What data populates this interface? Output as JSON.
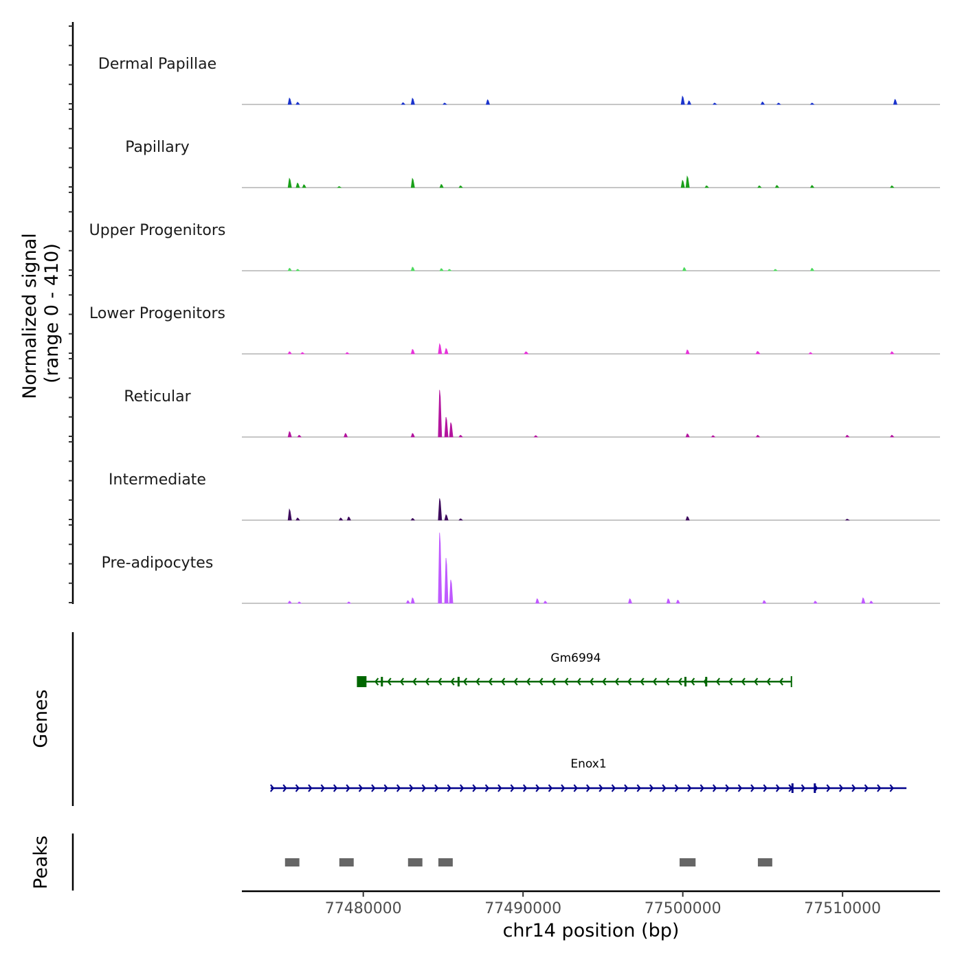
{
  "chart_data": {
    "type": "area",
    "title": "",
    "coverage": {
      "ylabel_line1": "Normalized signal",
      "ylabel_line2": "(range 0 - 410)",
      "ylim": [
        0,
        410
      ],
      "tracks": [
        {
          "name": "Dermal Papillae",
          "color": "#1a33cc",
          "peaks": [
            {
              "pos": 77475400,
              "h": 35,
              "w": 100
            },
            {
              "pos": 77475900,
              "h": 12,
              "w": 150
            },
            {
              "pos": 77483100,
              "h": 34,
              "w": 120
            },
            {
              "pos": 77482500,
              "h": 10,
              "w": 150
            },
            {
              "pos": 77487800,
              "h": 26,
              "w": 150
            },
            {
              "pos": 77485100,
              "h": 8,
              "w": 150
            },
            {
              "pos": 77500000,
              "h": 45,
              "w": 100
            },
            {
              "pos": 77500400,
              "h": 20,
              "w": 100
            },
            {
              "pos": 77502000,
              "h": 8,
              "w": 150
            },
            {
              "pos": 77505000,
              "h": 14,
              "w": 200
            },
            {
              "pos": 77506000,
              "h": 8,
              "w": 150
            },
            {
              "pos": 77508100,
              "h": 8,
              "w": 150
            },
            {
              "pos": 77513300,
              "h": 28,
              "w": 80
            }
          ]
        },
        {
          "name": "Papillary",
          "color": "#1aa01a",
          "peaks": [
            {
              "pos": 77475400,
              "h": 50,
              "w": 100
            },
            {
              "pos": 77475900,
              "h": 25,
              "w": 150
            },
            {
              "pos": 77476300,
              "h": 16,
              "w": 120
            },
            {
              "pos": 77478500,
              "h": 6,
              "w": 200
            },
            {
              "pos": 77483100,
              "h": 50,
              "w": 150
            },
            {
              "pos": 77484900,
              "h": 18,
              "w": 150
            },
            {
              "pos": 77486100,
              "h": 10,
              "w": 120
            },
            {
              "pos": 77500000,
              "h": 40,
              "w": 120
            },
            {
              "pos": 77500300,
              "h": 62,
              "w": 100
            },
            {
              "pos": 77501500,
              "h": 10,
              "w": 150
            },
            {
              "pos": 77504800,
              "h": 10,
              "w": 150
            },
            {
              "pos": 77505900,
              "h": 12,
              "w": 120
            },
            {
              "pos": 77508100,
              "h": 12,
              "w": 180
            },
            {
              "pos": 77513100,
              "h": 10,
              "w": 120
            }
          ]
        },
        {
          "name": "Upper Progenitors",
          "color": "#4dd95e",
          "peaks": [
            {
              "pos": 77475400,
              "h": 14,
              "w": 100
            },
            {
              "pos": 77475900,
              "h": 8,
              "w": 150
            },
            {
              "pos": 77483100,
              "h": 20,
              "w": 100
            },
            {
              "pos": 77484900,
              "h": 12,
              "w": 150
            },
            {
              "pos": 77485400,
              "h": 8,
              "w": 150
            },
            {
              "pos": 77500100,
              "h": 18,
              "w": 150
            },
            {
              "pos": 77505800,
              "h": 8,
              "w": 120
            },
            {
              "pos": 77508100,
              "h": 14,
              "w": 120
            }
          ]
        },
        {
          "name": "Lower Progenitors",
          "color": "#e633d9",
          "peaks": [
            {
              "pos": 77475400,
              "h": 12,
              "w": 150
            },
            {
              "pos": 77476200,
              "h": 8,
              "w": 150
            },
            {
              "pos": 77479000,
              "h": 8,
              "w": 150
            },
            {
              "pos": 77483100,
              "h": 25,
              "w": 150
            },
            {
              "pos": 77484800,
              "h": 55,
              "w": 120
            },
            {
              "pos": 77485200,
              "h": 30,
              "w": 150
            },
            {
              "pos": 77490200,
              "h": 12,
              "w": 250
            },
            {
              "pos": 77500300,
              "h": 22,
              "w": 100
            },
            {
              "pos": 77504700,
              "h": 14,
              "w": 250
            },
            {
              "pos": 77508000,
              "h": 8,
              "w": 150
            },
            {
              "pos": 77513100,
              "h": 12,
              "w": 120
            }
          ]
        },
        {
          "name": "Reticular",
          "color": "#b3149e",
          "peaks": [
            {
              "pos": 77475400,
              "h": 30,
              "w": 100
            },
            {
              "pos": 77476000,
              "h": 10,
              "w": 150
            },
            {
              "pos": 77478900,
              "h": 20,
              "w": 200
            },
            {
              "pos": 77483100,
              "h": 20,
              "w": 100
            },
            {
              "pos": 77484800,
              "h": 260,
              "w": 130
            },
            {
              "pos": 77485200,
              "h": 110,
              "w": 140
            },
            {
              "pos": 77485500,
              "h": 80,
              "w": 120
            },
            {
              "pos": 77486100,
              "h": 10,
              "w": 150
            },
            {
              "pos": 77490800,
              "h": 8,
              "w": 150
            },
            {
              "pos": 77500300,
              "h": 18,
              "w": 100
            },
            {
              "pos": 77501900,
              "h": 8,
              "w": 150
            },
            {
              "pos": 77504700,
              "h": 10,
              "w": 150
            },
            {
              "pos": 77510300,
              "h": 10,
              "w": 150
            },
            {
              "pos": 77513100,
              "h": 10,
              "w": 150
            }
          ]
        },
        {
          "name": "Intermediate",
          "color": "#3d0a5c",
          "peaks": [
            {
              "pos": 77475400,
              "h": 60,
              "w": 90
            },
            {
              "pos": 77475900,
              "h": 12,
              "w": 150
            },
            {
              "pos": 77478600,
              "h": 12,
              "w": 150
            },
            {
              "pos": 77479100,
              "h": 18,
              "w": 150
            },
            {
              "pos": 77483100,
              "h": 10,
              "w": 150
            },
            {
              "pos": 77484800,
              "h": 120,
              "w": 110
            },
            {
              "pos": 77485200,
              "h": 30,
              "w": 140
            },
            {
              "pos": 77486100,
              "h": 8,
              "w": 150
            },
            {
              "pos": 77500300,
              "h": 20,
              "w": 150
            },
            {
              "pos": 77510300,
              "h": 6,
              "w": 150
            }
          ]
        },
        {
          "name": "Pre-adipocytes",
          "color": "#bf59ff",
          "peaks": [
            {
              "pos": 77475400,
              "h": 12,
              "w": 150
            },
            {
              "pos": 77476000,
              "h": 8,
              "w": 150
            },
            {
              "pos": 77479100,
              "h": 8,
              "w": 150
            },
            {
              "pos": 77482800,
              "h": 15,
              "w": 150
            },
            {
              "pos": 77483100,
              "h": 30,
              "w": 130
            },
            {
              "pos": 77484800,
              "h": 390,
              "w": 140
            },
            {
              "pos": 77485200,
              "h": 250,
              "w": 140
            },
            {
              "pos": 77485500,
              "h": 130,
              "w": 120
            },
            {
              "pos": 77490900,
              "h": 25,
              "w": 150
            },
            {
              "pos": 77491400,
              "h": 12,
              "w": 150
            },
            {
              "pos": 77496700,
              "h": 25,
              "w": 100
            },
            {
              "pos": 77499100,
              "h": 25,
              "w": 200
            },
            {
              "pos": 77499700,
              "h": 18,
              "w": 200
            },
            {
              "pos": 77505100,
              "h": 15,
              "w": 150
            },
            {
              "pos": 77508300,
              "h": 12,
              "w": 150
            },
            {
              "pos": 77511300,
              "h": 30,
              "w": 100
            },
            {
              "pos": 77511800,
              "h": 12,
              "w": 150
            }
          ]
        }
      ]
    },
    "genes": {
      "ylabel": "Genes",
      "items": [
        {
          "name": "Gm6994",
          "strand": "-",
          "start": 77479800,
          "end": 77506800,
          "color": "#006600",
          "exons": [
            [
              77479600,
              77480200
            ],
            [
              77481100,
              77481200
            ],
            [
              77485900,
              77486000
            ],
            [
              77500100,
              77500200
            ],
            [
              77501400,
              77501500
            ]
          ]
        },
        {
          "name": "Enox1",
          "strand": "+",
          "start": 77474200,
          "end": 77514000,
          "color": "#00008b",
          "exons": [
            [
              77506800,
              77506900
            ],
            [
              77508200,
              77508300
            ]
          ]
        }
      ]
    },
    "peaks": {
      "ylabel": "Peaks",
      "color": "#666666",
      "regions": [
        [
          77475100,
          77476000
        ],
        [
          77478500,
          77479400
        ],
        [
          77482800,
          77483700
        ],
        [
          77484700,
          77485600
        ],
        [
          77499800,
          77500800
        ],
        [
          77504700,
          77505600
        ]
      ]
    },
    "xaxis": {
      "xlabel": "chr14 position (bp)",
      "xlim": [
        77472400,
        77516100
      ],
      "ticks": [
        77480000,
        77490000,
        77500000,
        77510000
      ],
      "tick_labels": [
        "77480000",
        "77490000",
        "77500000",
        "77510000"
      ]
    }
  }
}
